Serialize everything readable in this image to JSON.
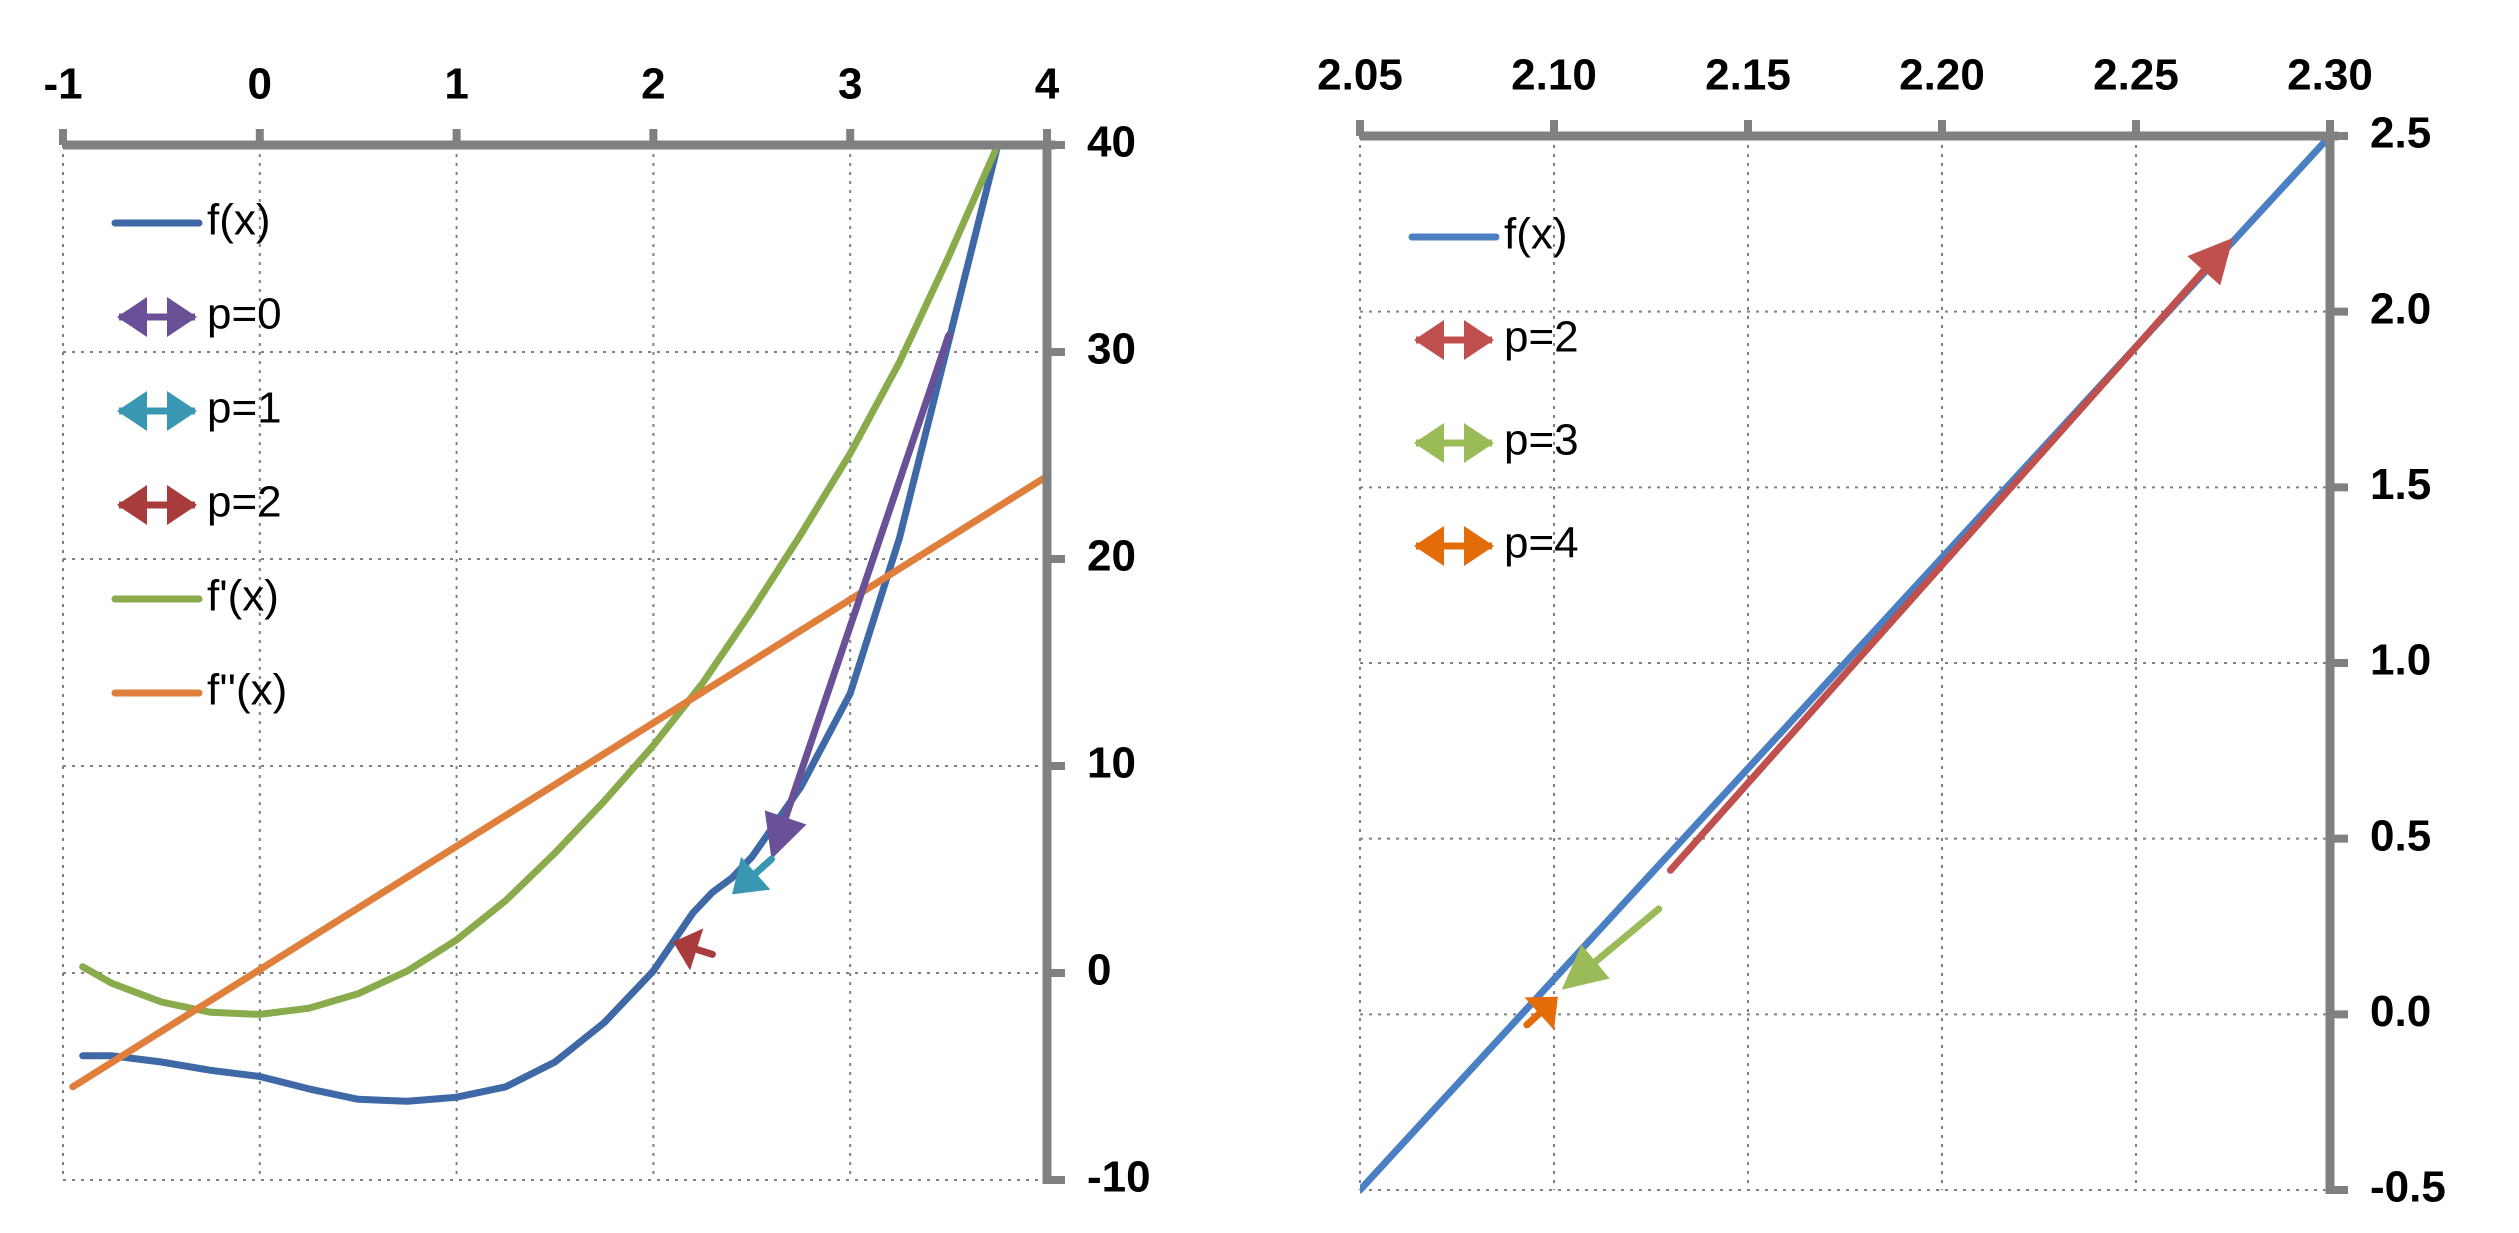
{
  "chart_data": [
    {
      "type": "line",
      "title": "",
      "xlabel": "",
      "ylabel": "",
      "x_axis_position": "top",
      "y_axis_position": "right",
      "xlim": [
        -1,
        4
      ],
      "ylim": [
        -10,
        40
      ],
      "x_ticks": [
        -1,
        0,
        1,
        2,
        3,
        4
      ],
      "x_tick_labels": [
        "-1",
        "0",
        "1",
        "2",
        "3",
        "4"
      ],
      "y_ticks": [
        -10,
        0,
        10,
        20,
        30,
        40
      ],
      "y_tick_labels": [
        "-10",
        "0",
        "10",
        "20",
        "30",
        "40"
      ],
      "grid": true,
      "legend_position": "top-left",
      "legend": [
        "f(x)",
        "p=0",
        "p=1",
        "p=2",
        "f'(x)",
        "f''(x)"
      ],
      "series": [
        {
          "name": "f(x)",
          "kind": "line",
          "color": "#3f68a6",
          "x": [
            -0.9,
            -0.75,
            -0.5,
            -0.25,
            0,
            0.25,
            0.5,
            0.75,
            1,
            1.25,
            1.5,
            1.75,
            2,
            2.1,
            2.2,
            2.3,
            2.4,
            2.5,
            2.75,
            3,
            3.25,
            3.5,
            3.75
          ],
          "y": [
            -4.0,
            -4.0,
            -4.3,
            -4.7,
            -5.0,
            -5.6,
            -6.1,
            -6.2,
            -6.0,
            -5.5,
            -4.3,
            -2.4,
            0.1,
            1.5,
            2.9,
            3.9,
            4.6,
            5.6,
            9.0,
            13.5,
            21.0,
            30.5,
            40.0
          ]
        },
        {
          "name": "f'(x)",
          "kind": "line",
          "color": "#8aab4b",
          "x": [
            -0.9,
            -0.75,
            -0.5,
            -0.25,
            0,
            0.25,
            0.5,
            0.75,
            1,
            1.25,
            1.5,
            1.75,
            2,
            2.25,
            2.5,
            2.75,
            3,
            3.25,
            3.5,
            3.75
          ],
          "y": [
            0.3,
            -0.5,
            -1.4,
            -1.9,
            -2.0,
            -1.7,
            -1.0,
            0.1,
            1.6,
            3.5,
            5.8,
            8.3,
            11.0,
            14.0,
            17.5,
            21.2,
            25.1,
            29.5,
            34.6,
            40.0
          ]
        },
        {
          "name": "f''(x)",
          "kind": "line",
          "color": "#e07f3c",
          "x": [
            -0.95,
            4.0
          ],
          "y": [
            -5.5,
            24.0
          ]
        },
        {
          "name": "p=0",
          "kind": "arrow",
          "color": "#6a5096",
          "x": [
            3.5,
            2.6
          ],
          "y": [
            30.8,
            5.5
          ]
        },
        {
          "name": "p=1",
          "kind": "arrow",
          "color": "#3a97b3",
          "x": [
            2.6,
            2.4
          ],
          "y": [
            5.5,
            3.8
          ]
        },
        {
          "name": "p=2",
          "kind": "arrow",
          "color": "#a83c3c",
          "x": [
            2.3,
            2.1
          ],
          "y": [
            0.9,
            1.5
          ]
        }
      ]
    },
    {
      "type": "line",
      "title": "",
      "xlabel": "",
      "ylabel": "",
      "x_axis_position": "top",
      "y_axis_position": "right",
      "xlim": [
        2.05,
        2.3
      ],
      "ylim": [
        -0.5,
        2.5
      ],
      "x_ticks": [
        2.05,
        2.1,
        2.15,
        2.2,
        2.25,
        2.3
      ],
      "x_tick_labels": [
        "2.05",
        "2.10",
        "2.15",
        "2.20",
        "2.25",
        "2.30"
      ],
      "y_ticks": [
        -0.5,
        0,
        0.5,
        1,
        1.5,
        2,
        2.5
      ],
      "y_tick_labels": [
        "-0.5",
        "0.0",
        "0.5",
        "1.0",
        "1.5",
        "2.0",
        "2.5"
      ],
      "grid": true,
      "legend_position": "top-left",
      "legend": [
        "f(x)",
        "p=2",
        "p=3",
        "p=4"
      ],
      "series": [
        {
          "name": "f(x)",
          "kind": "line",
          "color": "#4a7fc4",
          "x": [
            2.05,
            2.3
          ],
          "y": [
            -0.5,
            2.5
          ]
        },
        {
          "name": "p=2",
          "kind": "arrow",
          "color": "#c0504d",
          "x": [
            2.13,
            2.275
          ],
          "y": [
            0.41,
            2.21
          ]
        },
        {
          "name": "p=3",
          "kind": "arrow",
          "color": "#9bbb59",
          "x": [
            2.127,
            2.102
          ],
          "y": [
            0.3,
            0.07
          ]
        },
        {
          "name": "p=4",
          "kind": "arrow",
          "color": "#e36c09",
          "x": [
            2.093,
            2.101
          ],
          "y": [
            -0.03,
            0.05
          ]
        }
      ]
    }
  ]
}
